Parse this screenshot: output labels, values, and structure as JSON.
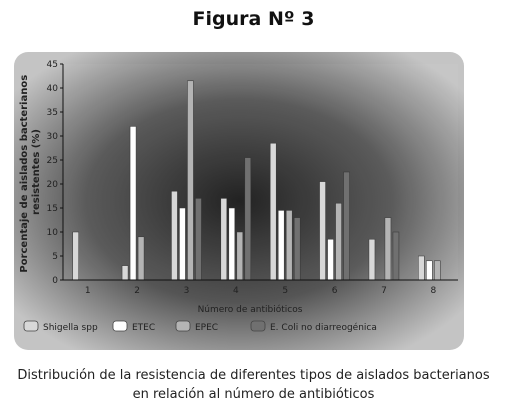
{
  "figure_title": "Figura Nº 3",
  "caption_line1": "Distribución de la resistencia de diferentes tipos de aislados bacterianos",
  "caption_line2": "en relación al número de antibióticos",
  "chart_data": {
    "type": "bar",
    "title": "",
    "xlabel": "Número de antibióticos",
    "ylabel_line1": "Porcentaje de aislados bacterianos",
    "ylabel_line2": "resistentes (%)",
    "ylim": [
      0,
      45
    ],
    "yticks": [
      0,
      5,
      10,
      15,
      20,
      25,
      30,
      35,
      40,
      45
    ],
    "grid": false,
    "legend_position": "bottom",
    "categories": [
      "1",
      "2",
      "3",
      "4",
      "5",
      "6",
      "7",
      "8"
    ],
    "series": [
      {
        "name": "Shigella spp",
        "color": "#d8d8d8",
        "values": [
          10,
          3,
          18.5,
          17,
          28.5,
          20.5,
          8.5,
          5
        ]
      },
      {
        "name": "ETEC",
        "color": "#ffffff",
        "values": [
          0,
          32,
          15,
          15,
          14.5,
          8.5,
          0,
          4
        ]
      },
      {
        "name": "EPEC",
        "color": "#b4b4b4",
        "values": [
          0,
          9,
          41.5,
          10,
          14.5,
          16,
          13,
          4
        ]
      },
      {
        "name": "E. Coli no diarreogénica",
        "color": "#707070",
        "values": [
          0,
          0,
          17,
          25.5,
          13,
          22.5,
          10,
          0
        ]
      }
    ]
  }
}
